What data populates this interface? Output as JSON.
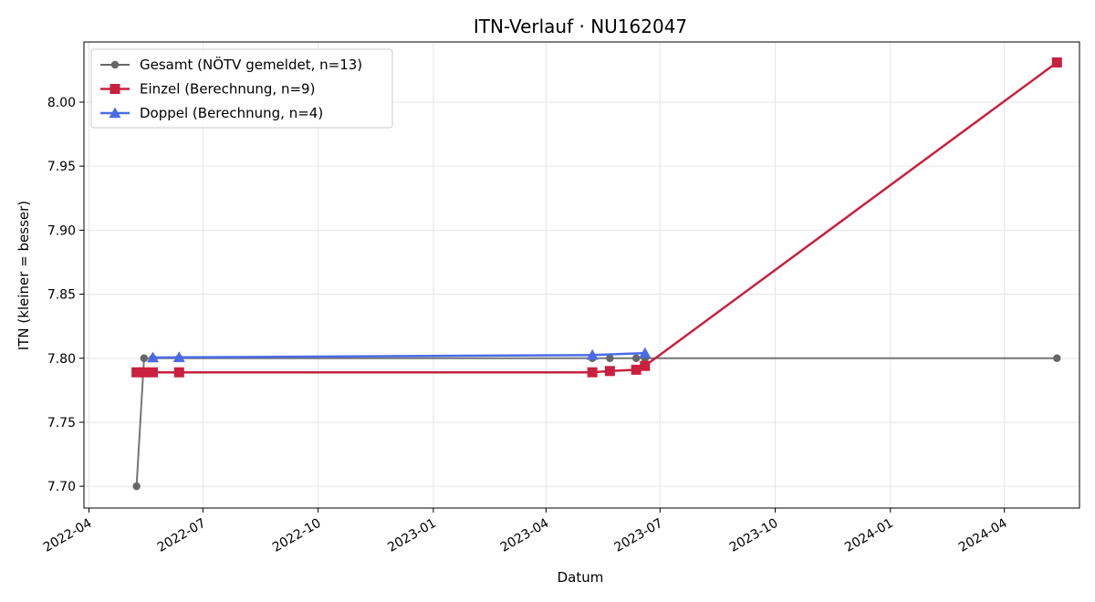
{
  "chart_data": {
    "type": "line",
    "title": "ITN-Verlauf · NU162047",
    "xlabel": "Datum",
    "ylabel": "ITN  (kleiner = besser)",
    "x_type": "date",
    "xlim": [
      "2022-03-28",
      "2024-05-31"
    ],
    "ylim": [
      7.683,
      8.047
    ],
    "x_ticks": [
      "2022-04-01",
      "2022-07-01",
      "2022-10-01",
      "2023-01-01",
      "2023-04-01",
      "2023-07-01",
      "2023-10-01",
      "2024-01-01",
      "2024-04-01"
    ],
    "x_tick_labels": [
      "2022-04",
      "2022-07",
      "2022-10",
      "2023-01",
      "2023-04",
      "2023-07",
      "2023-10",
      "2024-01",
      "2024-04"
    ],
    "y_ticks": [
      7.7,
      7.75,
      7.8,
      7.85,
      7.9,
      7.95,
      8.0
    ],
    "y_tick_labels": [
      "7.70",
      "7.75",
      "7.80",
      "7.85",
      "7.90",
      "7.95",
      "8.00"
    ],
    "grid": true,
    "legend_position": "top-left",
    "series": [
      {
        "name": "Gesamt (NÖTV gemeldet, n=13)",
        "color": "#666666",
        "marker": "circle",
        "points": [
          {
            "x": "2022-05-09",
            "y": 7.7
          },
          {
            "x": "2022-05-15",
            "y": 7.8
          },
          {
            "x": "2022-05-22",
            "y": 7.8
          },
          {
            "x": "2022-06-12",
            "y": 7.8
          },
          {
            "x": "2023-05-08",
            "y": 7.8
          },
          {
            "x": "2023-05-22",
            "y": 7.8
          },
          {
            "x": "2023-06-12",
            "y": 7.8
          },
          {
            "x": "2023-06-19",
            "y": 7.8
          },
          {
            "x": "2024-05-13",
            "y": 7.8
          }
        ]
      },
      {
        "name": "Einzel (Berechnung, n=9)",
        "color": "#c8203e",
        "marker": "square",
        "points": [
          {
            "x": "2022-05-09",
            "y": 7.789
          },
          {
            "x": "2022-05-15",
            "y": 7.789
          },
          {
            "x": "2022-05-22",
            "y": 7.789
          },
          {
            "x": "2022-06-12",
            "y": 7.789
          },
          {
            "x": "2023-05-08",
            "y": 7.789
          },
          {
            "x": "2023-05-22",
            "y": 7.79
          },
          {
            "x": "2023-06-12",
            "y": 7.791
          },
          {
            "x": "2023-06-19",
            "y": 7.794
          },
          {
            "x": "2024-05-13",
            "y": 8.031
          }
        ]
      },
      {
        "name": "Doppel (Berechnung, n=4)",
        "color": "#4a6be8",
        "marker": "triangle",
        "points": [
          {
            "x": "2022-05-22",
            "y": 7.8005
          },
          {
            "x": "2022-06-12",
            "y": 7.8007
          },
          {
            "x": "2023-05-08",
            "y": 7.8025
          },
          {
            "x": "2023-06-19",
            "y": 7.804
          }
        ]
      }
    ]
  }
}
